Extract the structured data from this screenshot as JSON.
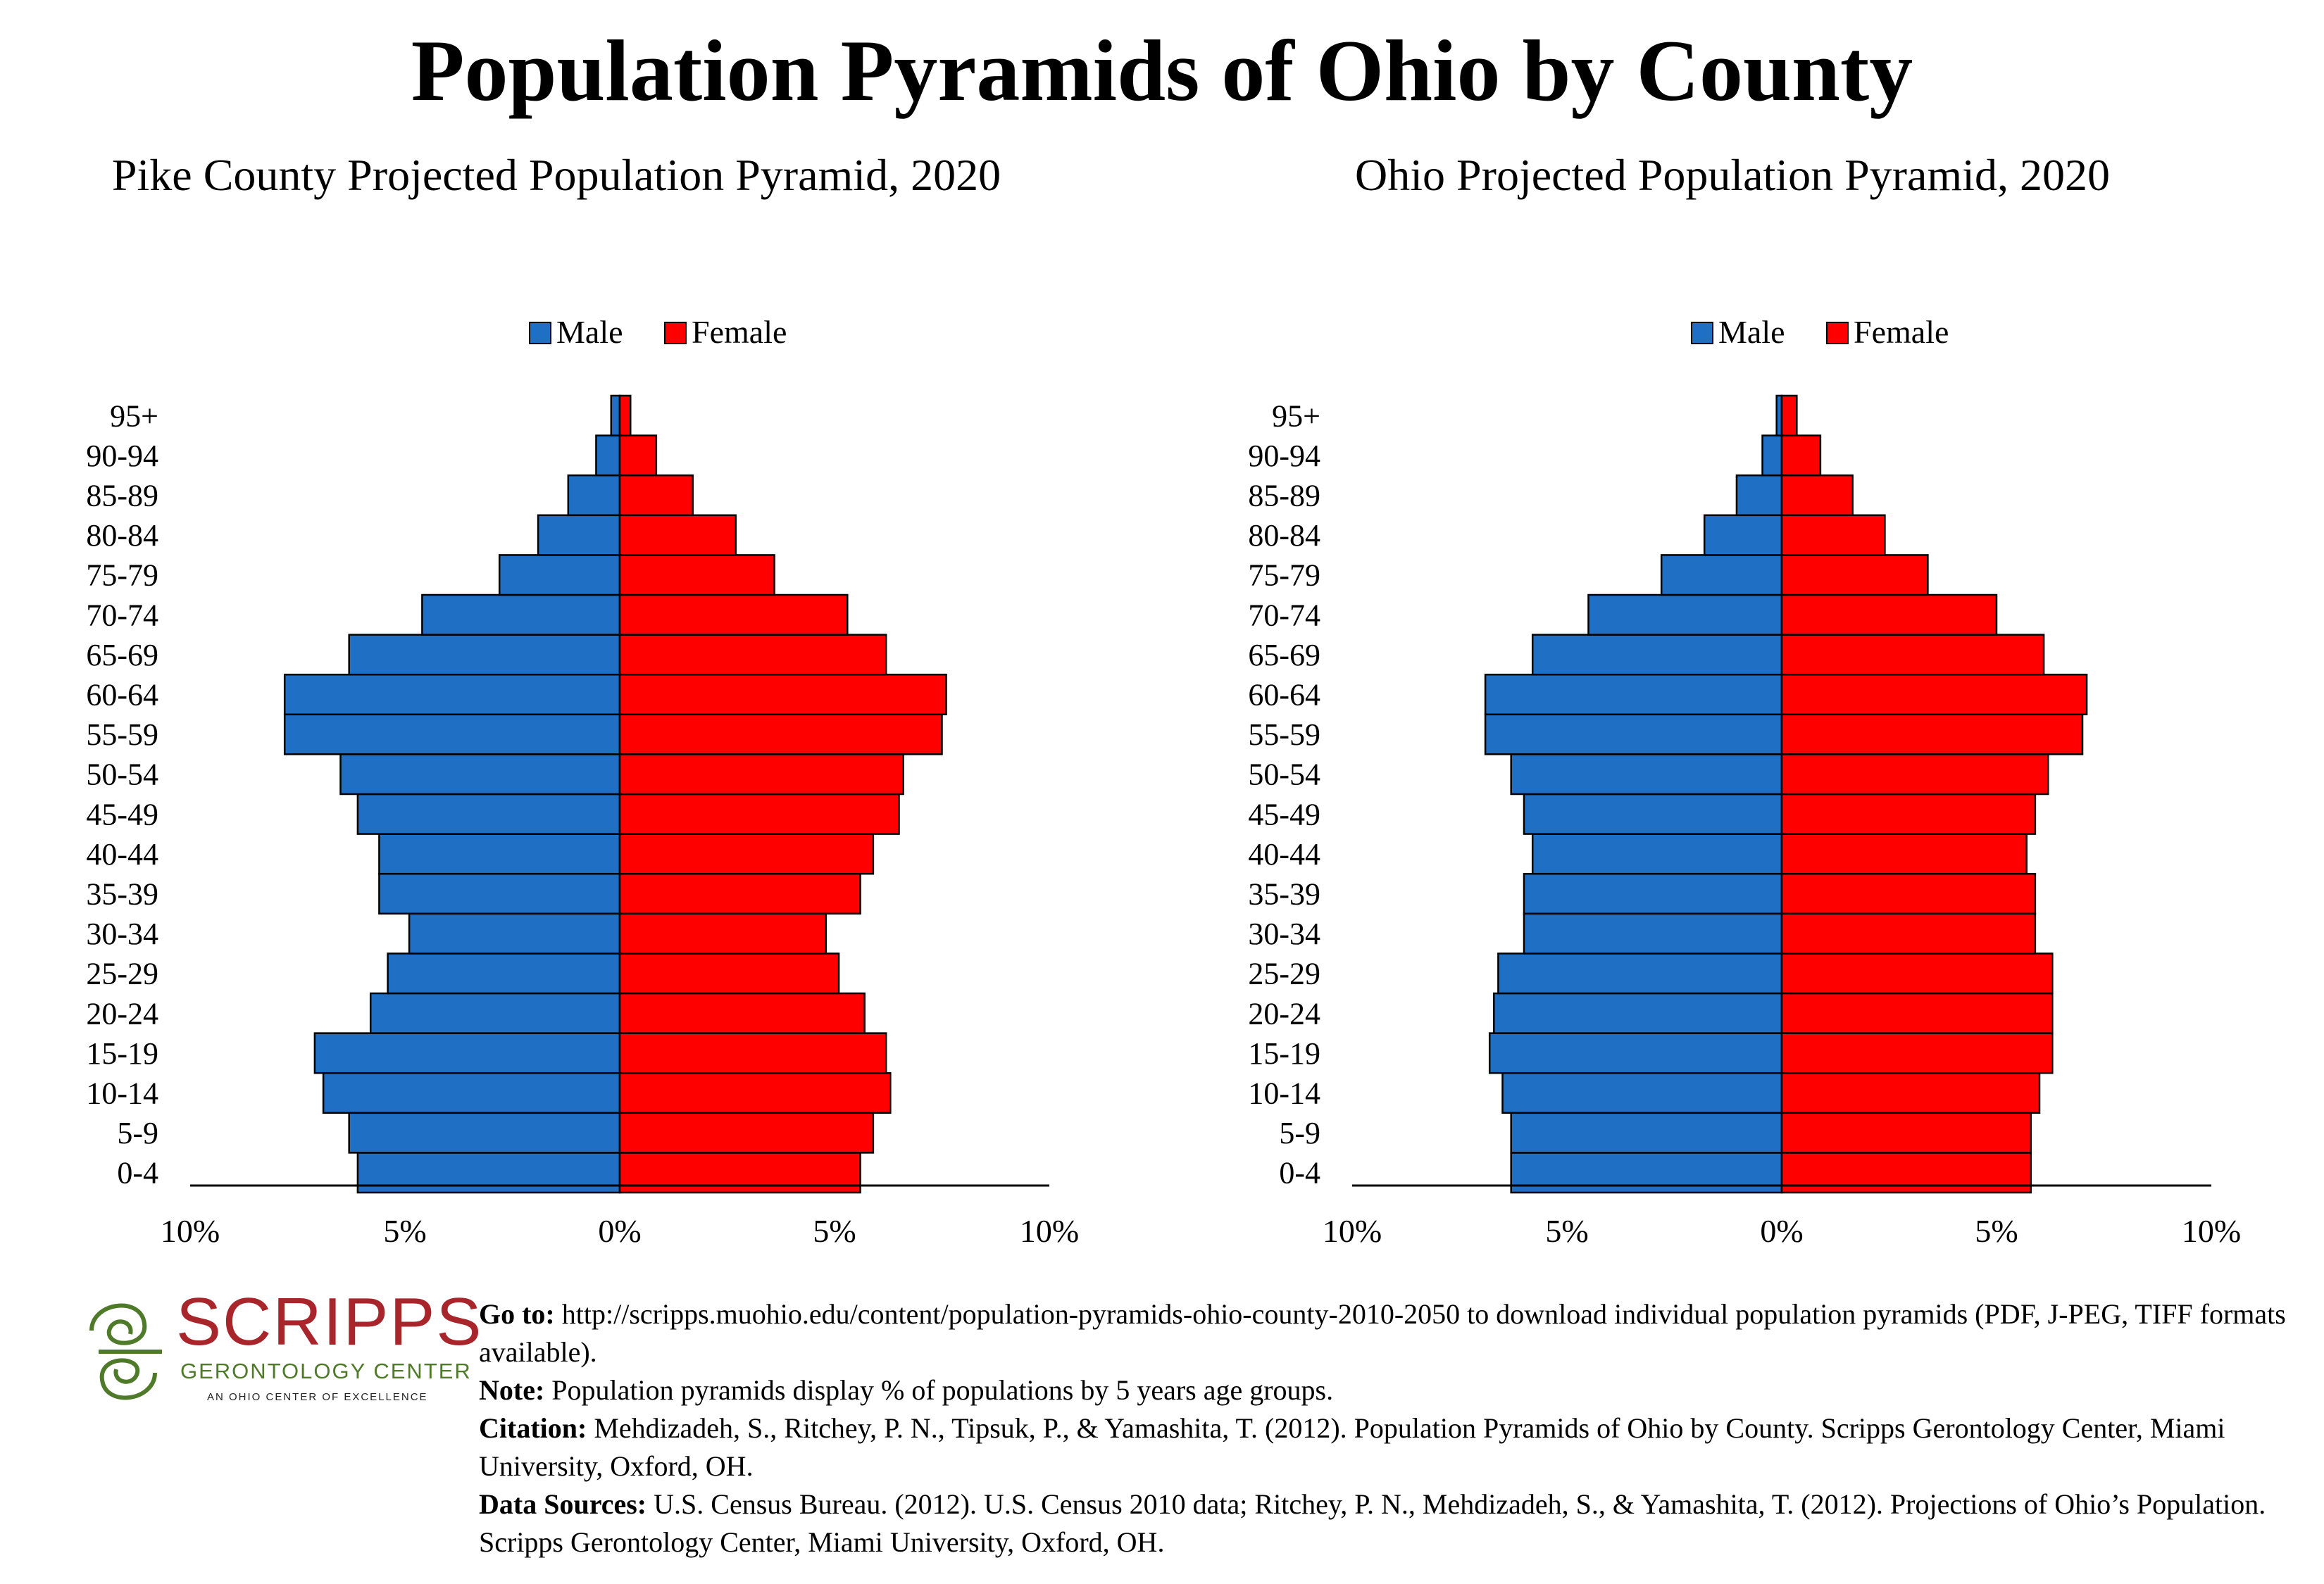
{
  "title": "Population Pyramids of Ohio by County",
  "legend": {
    "male": "Male",
    "female": "Female"
  },
  "colors": {
    "male": "#1f6fc5",
    "female": "#ff0000",
    "border": "#000000"
  },
  "logo": {
    "name": "SCRIPPS",
    "subtitle": "GERONTOLOGY CENTER",
    "tagline": "AN OHIO CENTER OF EXCELLENCE"
  },
  "notes": {
    "goto_label": "Go to:",
    "goto_text": "http://scripps.muohio.edu/content/population-pyramids-ohio-county-2010-2050 to download individual population pyramids (PDF, J-PEG, TIFF formats available).",
    "note_label": "Note:",
    "note_text": "Population pyramids display % of populations by 5 years age groups.",
    "citation_label": "Citation:",
    "citation_text": "Mehdizadeh, S., Ritchey, P. N., Tipsuk, P., & Yamashita, T. (2012). Population Pyramids of Ohio by County. Scripps Gerontology Center, Miami University, Oxford, OH.",
    "sources_label": "Data Sources:",
    "sources_text": "U.S. Census Bureau. (2012). U.S. Census 2010 data; Ritchey, P. N., Mehdizadeh, S., & Yamashita, T. (2012). Projections of Ohio’s Population. Scripps Gerontology Center, Miami University, Oxford, OH."
  },
  "chart_data": [
    {
      "type": "bar",
      "orientation": "horizontal-pyramid",
      "title": "Pike County Projected Population Pyramid, 2020",
      "categories": [
        "0-4",
        "5-9",
        "10-14",
        "15-19",
        "20-24",
        "25-29",
        "30-34",
        "35-39",
        "40-44",
        "45-49",
        "50-54",
        "55-59",
        "60-64",
        "65-69",
        "70-74",
        "75-79",
        "80-84",
        "85-89",
        "90-94",
        "95+"
      ],
      "x_ticks": [
        "10%",
        "5%",
        "0%",
        "5%",
        "10%"
      ],
      "xlim": [
        -10,
        10
      ],
      "legend_position": "top-center",
      "series": [
        {
          "name": "Male",
          "values": [
            6.1,
            6.3,
            6.9,
            7.1,
            5.8,
            5.4,
            4.9,
            5.6,
            5.6,
            6.1,
            6.5,
            7.8,
            7.8,
            6.3,
            4.6,
            2.8,
            1.9,
            1.2,
            0.55,
            0.2
          ]
        },
        {
          "name": "Female",
          "values": [
            5.6,
            5.9,
            6.3,
            6.2,
            5.7,
            5.1,
            4.8,
            5.6,
            5.9,
            6.5,
            6.6,
            7.5,
            7.6,
            6.2,
            5.3,
            3.6,
            2.7,
            1.7,
            0.85,
            0.25
          ]
        }
      ]
    },
    {
      "type": "bar",
      "orientation": "horizontal-pyramid",
      "title": "Ohio Projected Population Pyramid, 2020",
      "categories": [
        "0-4",
        "5-9",
        "10-14",
        "15-19",
        "20-24",
        "25-29",
        "30-34",
        "35-39",
        "40-44",
        "45-49",
        "50-54",
        "55-59",
        "60-64",
        "65-69",
        "70-74",
        "75-79",
        "80-84",
        "85-89",
        "90-94",
        "95+"
      ],
      "x_ticks": [
        "10%",
        "5%",
        "0%",
        "5%",
        "10%"
      ],
      "xlim": [
        -10,
        10
      ],
      "legend_position": "top-center",
      "series": [
        {
          "name": "Male",
          "values": [
            6.3,
            6.3,
            6.5,
            6.8,
            6.7,
            6.6,
            6.0,
            6.0,
            5.8,
            6.0,
            6.3,
            6.9,
            6.9,
            5.8,
            4.5,
            2.8,
            1.8,
            1.05,
            0.45,
            0.12
          ]
        },
        {
          "name": "Female",
          "values": [
            5.8,
            5.8,
            6.0,
            6.3,
            6.3,
            6.3,
            5.9,
            5.9,
            5.7,
            5.9,
            6.2,
            7.0,
            7.1,
            6.1,
            5.0,
            3.4,
            2.4,
            1.65,
            0.9,
            0.35
          ]
        }
      ]
    }
  ]
}
